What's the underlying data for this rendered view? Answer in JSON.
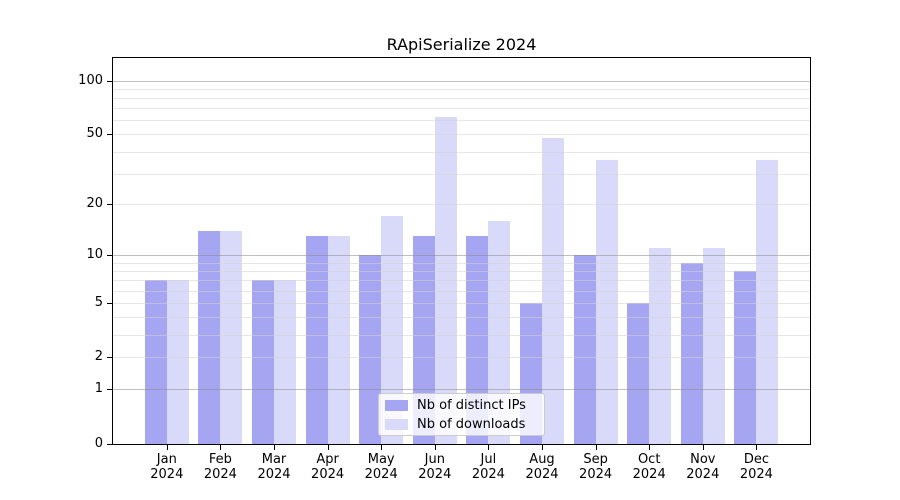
{
  "chart_data": {
    "type": "bar",
    "title": "RApiSerialize 2024",
    "categories": [
      "Jan",
      "Feb",
      "Mar",
      "Apr",
      "May",
      "Jun",
      "Jul",
      "Aug",
      "Sep",
      "Oct",
      "Nov",
      "Dec"
    ],
    "year": "2024",
    "series": [
      {
        "name": "Nb of distinct IPs",
        "color": "#a5a5f2",
        "values": [
          7,
          14,
          7,
          13,
          10,
          13,
          13,
          5,
          10,
          5,
          9,
          8
        ]
      },
      {
        "name": "Nb of downloads",
        "color": "#d9d9fa",
        "values": [
          7,
          14,
          7,
          13,
          17,
          63,
          16,
          48,
          36,
          11,
          11,
          36
        ]
      }
    ],
    "yticks": [
      0,
      1,
      2,
      5,
      10,
      20,
      50,
      100
    ],
    "minor_grid_values": [
      2,
      3,
      4,
      5,
      6,
      7,
      8,
      9,
      20,
      30,
      40,
      50,
      60,
      70,
      80,
      90
    ],
    "major_grid_values": [
      1,
      10,
      100
    ],
    "scale": "log1p",
    "ylim": [
      0,
      130
    ],
    "grid": "on",
    "legend_position": "inside-bottom-center"
  }
}
